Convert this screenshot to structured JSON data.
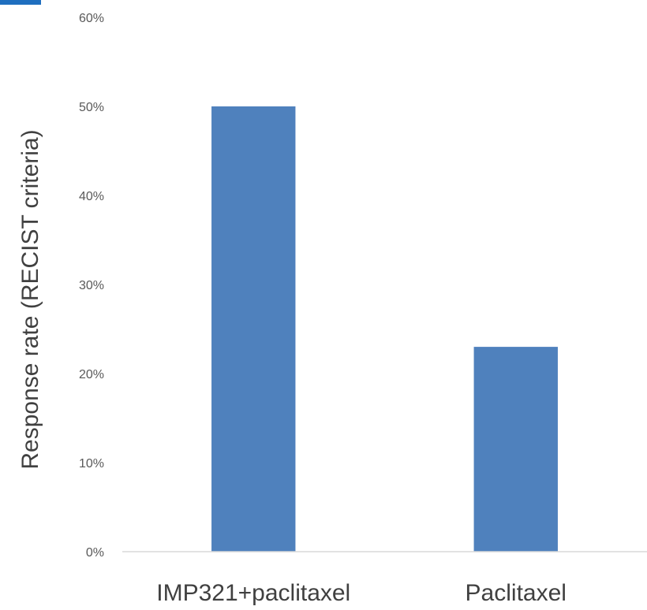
{
  "chart_data": {
    "type": "bar",
    "categories": [
      "IMP321+paclitaxel",
      "Paclitaxel"
    ],
    "values": [
      0.5,
      0.23
    ],
    "xlabel": "",
    "ylabel": "Response rate (RECIST criteria)",
    "ylim": [
      0,
      0.6
    ],
    "yticks": [
      0,
      0.1,
      0.2,
      0.3,
      0.4,
      0.5,
      0.6
    ],
    "ytick_labels": [
      "0%",
      "10%",
      "20%",
      "30%",
      "40%",
      "50%",
      "60%"
    ],
    "grid": false,
    "legend": "none",
    "colors": {
      "bar": "#4f81bd",
      "axis": "#d9d9d9",
      "corner_accent": "#1f6fbf"
    }
  }
}
